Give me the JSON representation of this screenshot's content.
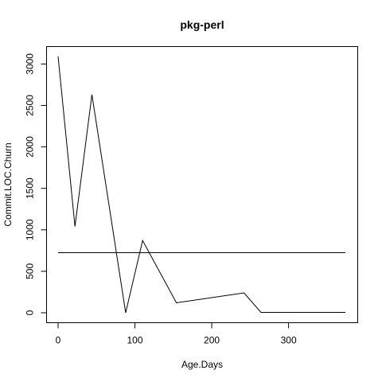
{
  "chart_data": {
    "type": "line",
    "title": "pkg-perl",
    "xlabel": "Age.Days",
    "ylabel": "Commit.LOC.Churn",
    "xlim": [
      -15,
      390
    ],
    "ylim": [
      -120,
      3210
    ],
    "x_ticks": [
      0,
      100,
      200,
      300
    ],
    "y_ticks": [
      0,
      500,
      1000,
      1500,
      2000,
      2500,
      3000
    ],
    "x_tick_labels": [
      "0",
      "100",
      "200",
      "300"
    ],
    "y_tick_labels": [
      "0",
      "500",
      "1000",
      "1500",
      "2000",
      "2500",
      "3000"
    ],
    "series": [
      {
        "x": [
          0,
          22,
          44,
          88,
          110,
          154,
          242,
          264,
          374
        ],
        "y": [
          3090,
          1040,
          2630,
          0,
          870,
          120,
          240,
          5,
          5
        ]
      }
    ],
    "hline": 725,
    "hline_range": [
      0,
      374
    ],
    "grid": false,
    "legend": "none"
  }
}
